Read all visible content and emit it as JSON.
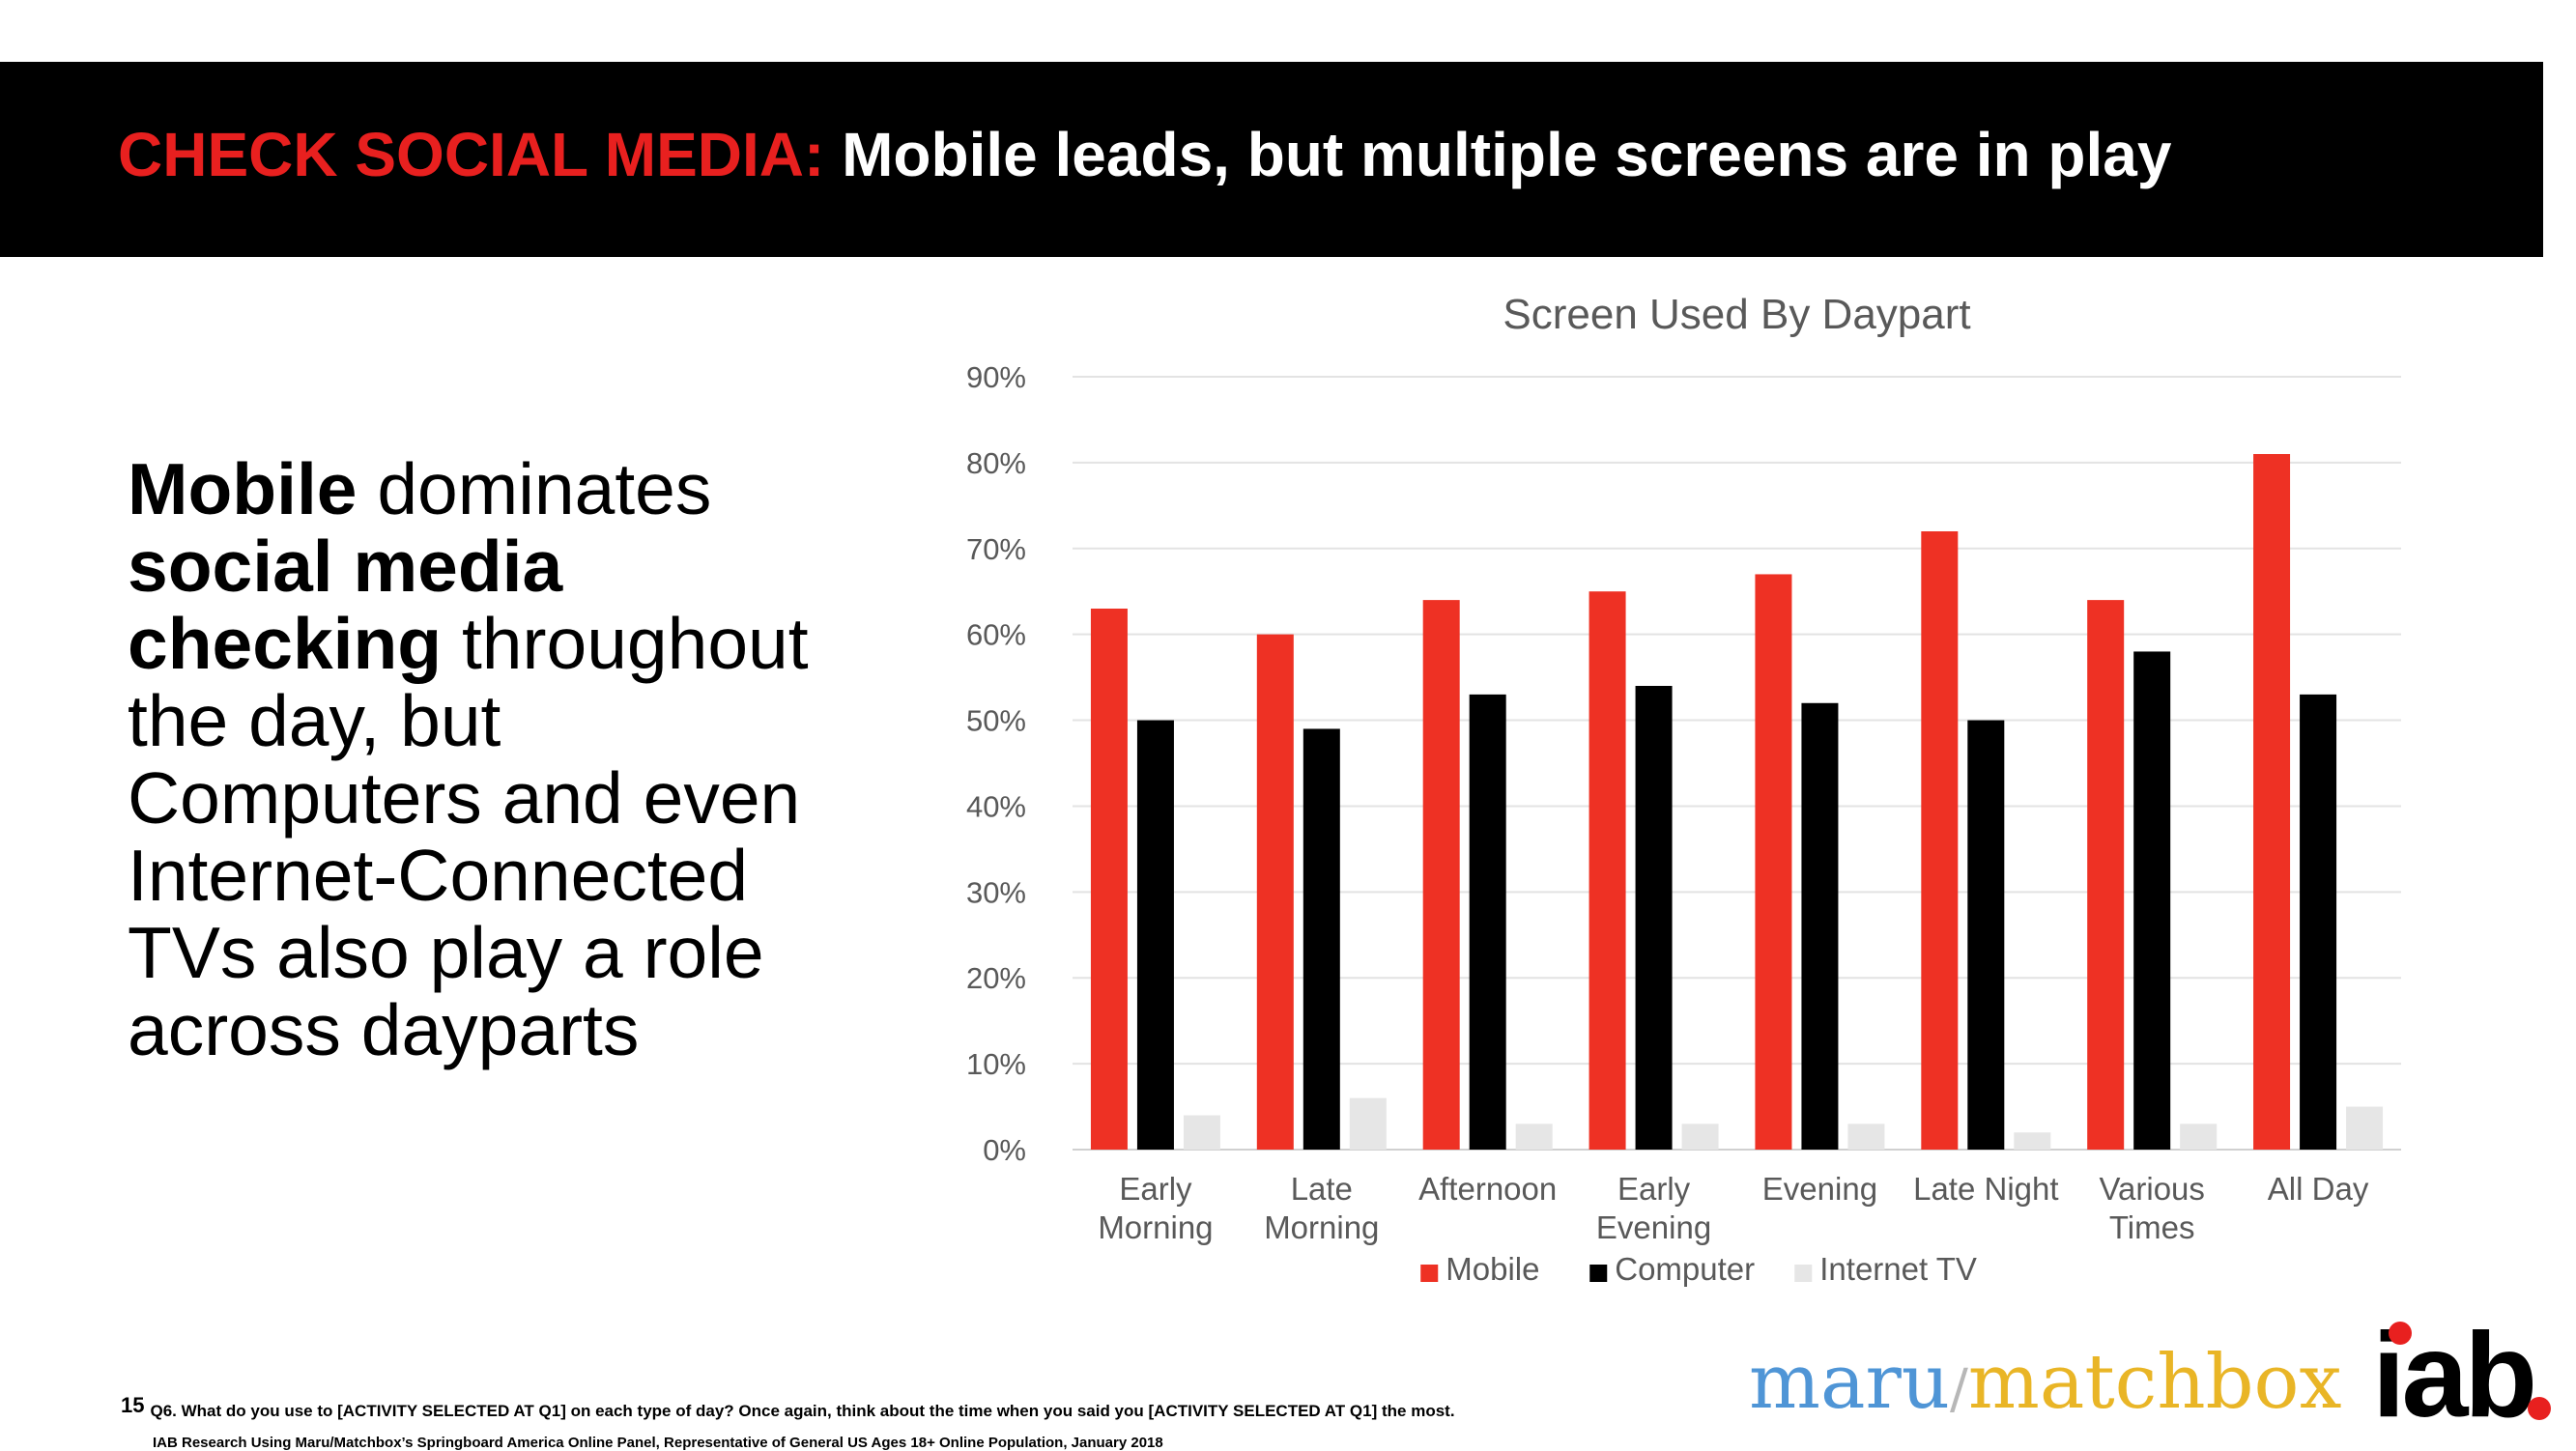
{
  "slide": {
    "title_accent": "CHECK SOCIAL MEDIA:",
    "title_main": " Mobile leads, but multiple screens are in play",
    "body": {
      "p1": "Mobile",
      "p2": " dominates ",
      "p3": "social media checking",
      "p4": " throughout the day, but Computers and even Internet-Connected TVs also play a role across dayparts"
    },
    "page_number": "15",
    "footnote": "Q6. What do you use to [ACTIVITY SELECTED AT Q1] on each type of day?  Once again, think about the time when you said you [ACTIVITY SELECTED AT Q1] the most.",
    "source": "IAB Research Using Maru/Matchbox’s Springboard America Online Panel, Representative of General US Ages 18+ Online Population, January 2018",
    "logos": {
      "maru": "maru",
      "slash": "/",
      "matchbox": "matchbox",
      "iab": "iab"
    },
    "colors": {
      "accent": "#e8201f",
      "banner": "#000000"
    }
  },
  "chart_data": {
    "type": "bar",
    "title": "Screen Used By Daypart",
    "categories": [
      [
        "Early",
        "Morning"
      ],
      [
        "Late",
        "Morning"
      ],
      [
        "Afternoon"
      ],
      [
        "Early",
        "Evening"
      ],
      [
        "Evening"
      ],
      [
        "Late Night"
      ],
      [
        "Various",
        "Times"
      ],
      [
        "All Day"
      ]
    ],
    "series": [
      {
        "name": "Mobile",
        "color": "#ee3124",
        "values": [
          63,
          60,
          64,
          65,
          67,
          72,
          64,
          81
        ]
      },
      {
        "name": "Computer",
        "color": "#000000",
        "values": [
          50,
          49,
          53,
          54,
          52,
          50,
          58,
          53
        ]
      },
      {
        "name": "Internet TV",
        "color": "#e6e6e6",
        "values": [
          4,
          6,
          3,
          3,
          3,
          2,
          3,
          5
        ]
      }
    ],
    "ylim": [
      0,
      90
    ],
    "yticks": [
      "0%",
      "10%",
      "20%",
      "30%",
      "40%",
      "50%",
      "60%",
      "70%",
      "80%",
      "90%"
    ],
    "xlabel": "",
    "ylabel": "",
    "grid": true,
    "legend": "bottom"
  }
}
